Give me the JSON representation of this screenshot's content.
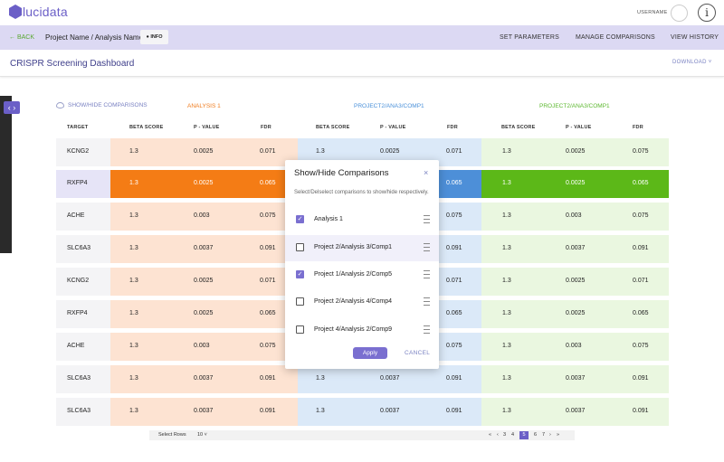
{
  "header": {
    "logo_text": "lucidata",
    "username": "USERNAME",
    "info_glyph": "i"
  },
  "nav": {
    "back": "← BACK",
    "breadcrumb": "Project Name / Analysis Name",
    "info_button": "● INFO",
    "links": [
      "SET PARAMETERS",
      "MANAGE COMPARISONS",
      "VIEW HISTORY"
    ]
  },
  "title": {
    "text": "CRISPR Screening Dashboard",
    "download": "DOWNLOAD ˅"
  },
  "toggle_glyph": "‹ ›",
  "table": {
    "show_hide_label": "SHOW/HIDE COMPARISONS",
    "groups": [
      {
        "name": "ANALYSIS 1",
        "color": "#f07c1e"
      },
      {
        "name": "PROJECT2/ANA3/COMP1",
        "color": "#4a90d9"
      },
      {
        "name": "PROJECT2/ANA3/COMP1",
        "color": "#5cb82f"
      }
    ],
    "columns": [
      "TARGET",
      "BETA SCORE",
      "P - VALUE",
      "FDR",
      "BETA SCORE",
      "P - VALUE",
      "FDR",
      "BETA SCORE",
      "P - VALUE",
      "FDR"
    ],
    "rows": [
      {
        "target": "KCNG2",
        "values": [
          "1.3",
          "0.0025",
          "0.071",
          "1.3",
          "0.0025",
          "0.071",
          "1.3",
          "0.0025",
          "0.075"
        ]
      },
      {
        "target": "RXFP4",
        "highlight": true,
        "values": [
          "1.3",
          "0.0025",
          "0.065",
          "",
          "",
          "0.065",
          "1.3",
          "0.0025",
          "0.065"
        ]
      },
      {
        "target": "ACHE",
        "values": [
          "1.3",
          "0.003",
          "0.075",
          "",
          "",
          "0.075",
          "1.3",
          "0.003",
          "0.075"
        ]
      },
      {
        "target": "SLC6A3",
        "values": [
          "1.3",
          "0.0037",
          "0.091",
          "",
          "",
          "0.091",
          "1.3",
          "0.0037",
          "0.091"
        ]
      },
      {
        "target": "KCNG2",
        "values": [
          "1.3",
          "0.0025",
          "0.071",
          "",
          "",
          "0.071",
          "1.3",
          "0.0025",
          "0.071"
        ]
      },
      {
        "target": "RXFP4",
        "values": [
          "1.3",
          "0.0025",
          "0.065",
          "",
          "",
          "0.065",
          "1.3",
          "0.0025",
          "0.065"
        ]
      },
      {
        "target": "ACHE",
        "values": [
          "1.3",
          "0.003",
          "0.075",
          "",
          "",
          "0.075",
          "1.3",
          "0.003",
          "0.075"
        ]
      },
      {
        "target": "SLC6A3",
        "values": [
          "1.3",
          "0.0037",
          "0.091",
          "1.3",
          "0.0037",
          "0.091",
          "1.3",
          "0.0037",
          "0.091"
        ]
      },
      {
        "target": "SLC6A3",
        "values": [
          "1.3",
          "0.0037",
          "0.091",
          "1.3",
          "0.0037",
          "0.091",
          "1.3",
          "0.0037",
          "0.091"
        ]
      }
    ],
    "colors": {
      "orange_light": "#fde3d2",
      "orange_strong": "#f47c15",
      "blue_light": "#dbe9f8",
      "blue_strong": "#4d8fd8",
      "green_light": "#eaf7e0",
      "green_strong": "#5cb818",
      "target_bg": "#f4f4f6",
      "row_highlight_bg": "#e6e4f7"
    }
  },
  "pagination": {
    "select_rows_label": "Select Rows",
    "rows_value": "10 ˅",
    "pages": [
      "«",
      "‹",
      "3",
      "4",
      "5",
      "6",
      "7",
      "›",
      "»"
    ],
    "active_page": "5"
  },
  "modal": {
    "title": "Show/Hide Comparisons",
    "close": "×",
    "description": "Select/Delselect comparisons to show/hide respectively.",
    "items": [
      {
        "label": "Analysis 1",
        "checked": true
      },
      {
        "label": "Project 2/Analysis 3/Comp1",
        "checked": false
      },
      {
        "label": "Project 1/Analysis 2/Comp5",
        "checked": true
      },
      {
        "label": "Project 2/Analysis 4/Comp4",
        "checked": false
      },
      {
        "label": "Project 4/Analysis 2/Comp9",
        "checked": false
      }
    ],
    "apply": "Apply",
    "cancel": "CANCEL"
  }
}
